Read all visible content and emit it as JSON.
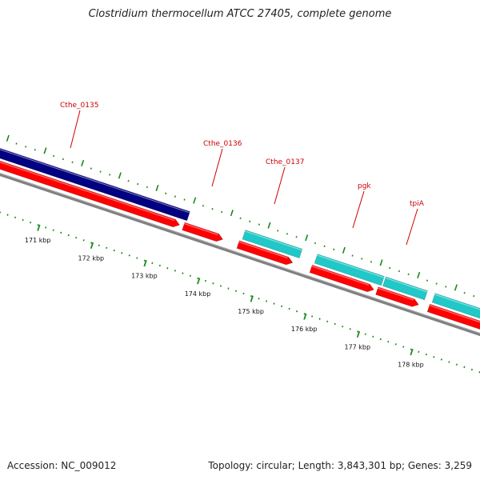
{
  "title": "Clostridium thermocellum ATCC 27405, complete genome",
  "footer": {
    "accession": "Accession: NC_009012",
    "topology": "Topology: circular; Length: 3,843,301 bp; Genes: 3,259"
  },
  "colors": {
    "background": "#ffffff",
    "backbone": "#808080",
    "cds_red": "#ff0000",
    "cds_dark_blue": "#000080",
    "cds_cyan": "#20c8c8",
    "tick_green": "#1a8a1a",
    "gene_label_red": "#cc0000",
    "label_line_red": "#cc0000"
  },
  "gene_labels": [
    {
      "name": "Cthe_0135"
    },
    {
      "name": "Cthe_0136"
    },
    {
      "name": "Cthe_0137"
    },
    {
      "name": "pgk"
    },
    {
      "name": "tpiA"
    }
  ],
  "scale_labels": [
    "171 kbp",
    "172 kbp",
    "173 kbp",
    "174 kbp",
    "175 kbp",
    "176 kbp",
    "177 kbp",
    "178 kbp"
  ]
}
